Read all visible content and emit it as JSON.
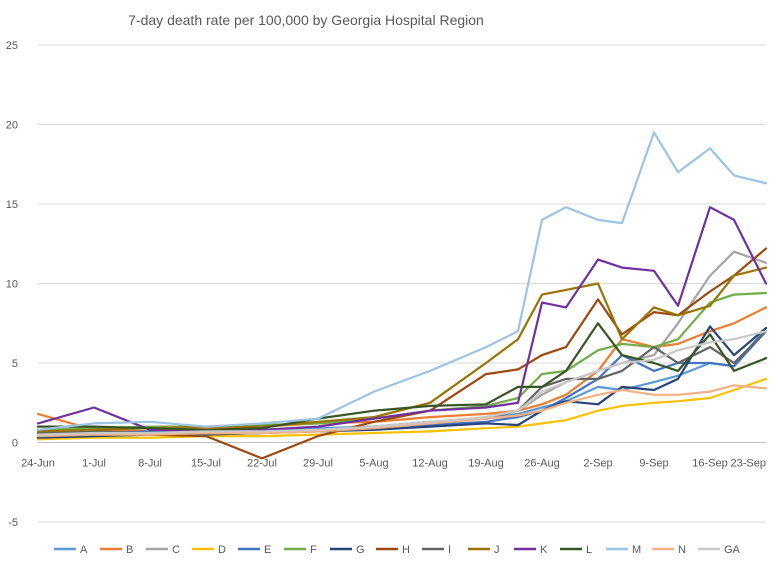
{
  "chart_data": {
    "type": "line",
    "title": "7-day death rate per 100,000 by Georgia Hospital Region",
    "xlabel": "",
    "ylabel": "",
    "ylim": [
      -5,
      25
    ],
    "yticks": [
      25,
      20,
      15,
      10,
      5,
      0,
      -5
    ],
    "x_range": [
      "2020-06-24",
      "2020-09-23"
    ],
    "xticks": [
      "24-Jun",
      "1-Jul",
      "8-Jul",
      "15-Jul",
      "22-Jul",
      "29-Jul",
      "5-Aug",
      "12-Aug",
      "19-Aug",
      "26-Aug",
      "2-Sep",
      "9-Sep",
      "16-Sep",
      "23-Sep"
    ],
    "grid": true,
    "legend_position": "bottom",
    "x": [
      "2020-06-24",
      "2020-07-01",
      "2020-07-08",
      "2020-07-15",
      "2020-07-22",
      "2020-07-29",
      "2020-08-05",
      "2020-08-12",
      "2020-08-19",
      "2020-08-23",
      "2020-08-26",
      "2020-08-29",
      "2020-09-02",
      "2020-09-05",
      "2020-09-09",
      "2020-09-12",
      "2020-09-16",
      "2020-09-19",
      "2020-09-23"
    ],
    "series": [
      {
        "name": "A",
        "color": "#5B9BD5",
        "values": [
          0.5,
          0.5,
          0.6,
          0.7,
          0.8,
          0.9,
          1.0,
          1.3,
          1.5,
          1.8,
          2.2,
          2.6,
          3.5,
          3.3,
          3.8,
          4.2,
          5.0,
          4.8,
          7.2
        ]
      },
      {
        "name": "B",
        "color": "#ED7D31",
        "values": [
          1.8,
          0.8,
          0.7,
          0.9,
          1.0,
          1.2,
          1.3,
          1.6,
          1.8,
          2.0,
          2.4,
          3.0,
          4.5,
          6.5,
          6.0,
          6.2,
          7.0,
          7.5,
          8.5
        ]
      },
      {
        "name": "C",
        "color": "#A5A5A5",
        "values": [
          0.3,
          0.4,
          0.5,
          0.6,
          0.6,
          0.7,
          0.9,
          1.2,
          1.6,
          2.0,
          3.0,
          3.8,
          4.5,
          5.0,
          5.5,
          7.5,
          10.5,
          12.0,
          11.3
        ]
      },
      {
        "name": "D",
        "color": "#FFC000",
        "values": [
          0.2,
          0.3,
          0.3,
          0.4,
          0.4,
          0.5,
          0.6,
          0.7,
          0.9,
          1.0,
          1.2,
          1.4,
          2.0,
          2.3,
          2.5,
          2.6,
          2.8,
          3.3,
          4.0
        ]
      },
      {
        "name": "E",
        "color": "#4472C4",
        "values": [
          0.5,
          0.6,
          0.7,
          0.5,
          0.6,
          0.8,
          1.0,
          1.1,
          1.3,
          1.6,
          2.0,
          2.8,
          4.0,
          5.5,
          4.5,
          5.0,
          5.0,
          4.8,
          7.0
        ]
      },
      {
        "name": "F",
        "color": "#70AD47",
        "values": [
          0.8,
          0.9,
          1.0,
          1.0,
          1.1,
          1.2,
          1.5,
          2.0,
          2.3,
          2.8,
          4.3,
          4.5,
          5.8,
          6.2,
          6.0,
          6.5,
          8.8,
          9.3,
          9.4
        ]
      },
      {
        "name": "G",
        "color": "#264478",
        "values": [
          0.3,
          0.4,
          0.5,
          0.6,
          0.7,
          0.7,
          0.8,
          1.0,
          1.2,
          1.1,
          2.0,
          2.6,
          2.4,
          3.5,
          3.3,
          4.0,
          7.3,
          5.5,
          7.2
        ]
      },
      {
        "name": "H",
        "color": "#9E480E",
        "values": [
          0.6,
          0.7,
          0.5,
          0.4,
          -1.0,
          0.4,
          1.3,
          2.0,
          4.3,
          4.6,
          5.5,
          6.0,
          9.0,
          6.8,
          8.2,
          8.0,
          9.5,
          10.5,
          12.2
        ]
      },
      {
        "name": "I",
        "color": "#636363",
        "values": [
          0.6,
          0.7,
          0.6,
          0.5,
          0.6,
          0.7,
          1.0,
          1.3,
          1.5,
          2.0,
          3.5,
          4.0,
          4.0,
          4.5,
          6.0,
          5.0,
          6.0,
          5.0,
          7.0
        ]
      },
      {
        "name": "J",
        "color": "#997300",
        "values": [
          0.7,
          0.8,
          0.9,
          1.0,
          1.0,
          1.3,
          1.6,
          2.5,
          5.0,
          6.5,
          9.3,
          9.6,
          10.0,
          6.5,
          8.5,
          8.0,
          8.6,
          10.5,
          11.0
        ]
      },
      {
        "name": "K",
        "color": "#7030A0",
        "values": [
          1.2,
          2.2,
          0.8,
          0.7,
          0.8,
          1.0,
          1.5,
          2.0,
          2.2,
          2.5,
          8.8,
          8.5,
          11.5,
          11.0,
          10.8,
          8.6,
          14.8,
          14.0,
          10.0
        ]
      },
      {
        "name": "L",
        "color": "#375623",
        "values": [
          1.0,
          1.0,
          0.9,
          0.8,
          0.9,
          1.5,
          2.0,
          2.3,
          2.4,
          3.5,
          3.5,
          4.5,
          7.5,
          5.5,
          5.0,
          4.5,
          6.8,
          4.5,
          5.3
        ]
      },
      {
        "name": "M",
        "color": "#9DC3E6",
        "values": [
          0.8,
          1.2,
          1.3,
          1.0,
          1.2,
          1.5,
          3.2,
          4.5,
          6.0,
          7.0,
          14.0,
          14.8,
          14.0,
          13.8,
          19.5,
          17.0,
          18.5,
          16.8,
          16.3
        ]
      },
      {
        "name": "N",
        "color": "#F4B183",
        "values": [
          0.4,
          0.5,
          0.5,
          0.6,
          0.6,
          0.7,
          0.9,
          1.2,
          1.5,
          1.7,
          2.0,
          2.5,
          3.0,
          3.3,
          3.0,
          3.0,
          3.2,
          3.6,
          3.4
        ]
      },
      {
        "name": "GA",
        "color": "#C9C9C9",
        "values": [
          0.5,
          0.6,
          0.6,
          0.7,
          0.7,
          0.8,
          1.0,
          1.3,
          1.6,
          2.0,
          3.2,
          3.8,
          4.5,
          5.0,
          5.2,
          5.8,
          6.3,
          6.5,
          7.0
        ]
      }
    ]
  }
}
